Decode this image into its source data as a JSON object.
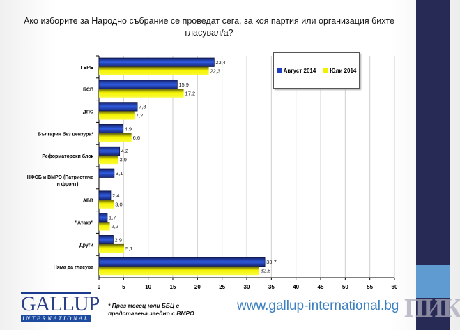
{
  "chart_data": {
    "type": "bar",
    "orientation": "horizontal",
    "title": "Ако изборите за Народно събрание се проведат сега, за коя партия или организация бихте гласувал/а?",
    "categories": [
      "ГЕРБ",
      "БСП",
      "ДПС",
      "България без цензура*",
      "Реформаторски блок",
      "НФСБ и ВМРО (Патриотичен фронт)",
      "АБВ",
      "\"Атака\"",
      "Други",
      "Няма да гласува"
    ],
    "series": [
      {
        "name": "Август 2014",
        "color": "#1f3fbf",
        "values": [
          23.4,
          15.9,
          7.8,
          4.9,
          4.2,
          3.1,
          2.4,
          1.7,
          2.9,
          33.7
        ]
      },
      {
        "name": "Юли 2014",
        "color": "#f2f200",
        "values": [
          22.3,
          17.2,
          7.2,
          6.6,
          3.9,
          null,
          3.0,
          2.2,
          5.1,
          32.5
        ]
      }
    ],
    "data_labels": [
      [
        "23,4",
        "15,9",
        "7,8",
        "4,9",
        "4,2",
        "3,1",
        "2,4",
        "1,7",
        "2,9",
        "33,7"
      ],
      [
        "22,3",
        "17,2",
        "7,2",
        "6,6",
        "3,9",
        null,
        "3,0",
        "2,2",
        "5,1",
        "32,5"
      ]
    ],
    "xlim": [
      0,
      60
    ],
    "xticks": [
      "0",
      "5",
      "10",
      "15",
      "20",
      "25",
      "30",
      "35",
      "40",
      "45",
      "50",
      "55",
      "60"
    ],
    "grid": true,
    "legend_position": "top-right",
    "xlabel": "",
    "ylabel": ""
  },
  "footer": {
    "logo_word": "GALLUP",
    "logo_sub": "INTERNATIONAL",
    "note": "* През месец юли ББЦ е представена заедно с ВМРО",
    "url": "www.gallup-international.bg",
    "watermark": "ПИК"
  },
  "colors": {
    "band": "#262a55",
    "band_accent": "#5f9bd0",
    "url": "#3a7fc0"
  }
}
